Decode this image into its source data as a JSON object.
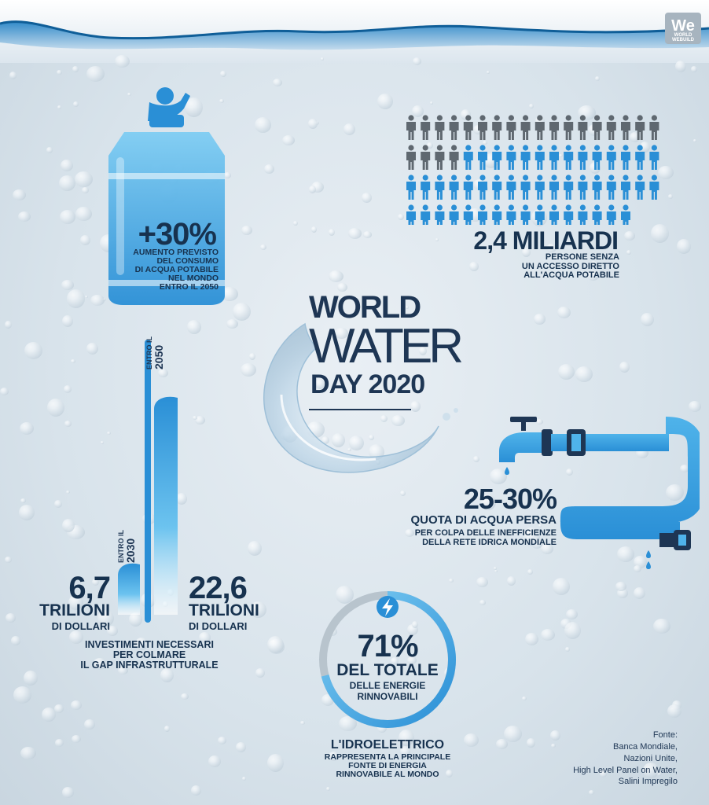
{
  "logo": {
    "text": "We",
    "subtext": "WORLD WEBUILD"
  },
  "title": {
    "line1": "WORLD",
    "line2": "WATER",
    "line3": "DAY 2020"
  },
  "consumption": {
    "value": "+30%",
    "caption": [
      "AUMENTO PREVISTO",
      "DEL CONSUMO",
      "DI ACQUA POTABILE",
      "NEL MONDO",
      "ENTRO IL 2050"
    ]
  },
  "people": {
    "value": "2,4 MILIARDI",
    "caption": [
      "PERSONE SENZA",
      "UN ACCESSO DIRETTO",
      "ALL'ACQUA POTABILE"
    ],
    "rows": [
      {
        "grey": 18,
        "blue": 0
      },
      {
        "grey": 4,
        "blue": 14
      },
      {
        "grey": 0,
        "blue": 18
      },
      {
        "grey": 0,
        "blue": 16
      }
    ]
  },
  "investment": {
    "left_value": "6,7",
    "left_unit": "TRILIONI",
    "left_sub": "DI DOLLARI",
    "left_bar_label": [
      "ENTRO IL",
      "2030"
    ],
    "right_value": "22,6",
    "right_unit": "TRILIONI",
    "right_sub": "DI DOLLARI",
    "right_bar_label": [
      "ENTRO IL",
      "2050"
    ],
    "caption": [
      "INVESTIMENTI NECESSARI",
      "PER COLMARE",
      "IL GAP INFRASTRUTTURALE"
    ]
  },
  "loss": {
    "value": "25-30%",
    "headline": "QUOTA DI ACQUA PERSA",
    "caption": [
      "PER COLPA DELLE INEFFICIENZE",
      "DELLA RETE IDRICA MONDIALE"
    ]
  },
  "hydro": {
    "value": "71%",
    "share": 0.71,
    "line1": "DEL TOTALE",
    "line2": "DELLE ENERGIE",
    "line3": "RINNOVABILI",
    "headline": "L'IDROELETTRICO",
    "caption": [
      "RAPPRESENTA LA PRINCIPALE",
      "FONTE DI ENERGIA",
      "RINNOVABILE AL MONDO"
    ]
  },
  "sources": {
    "label": "Fonte:",
    "items": [
      "Banca Mondiale,",
      "Nazioni Unite,",
      "High Level Panel on Water,",
      "Salini Impregilo"
    ]
  },
  "colors": {
    "navy": "#17324f",
    "blue": "#2a8fd6",
    "lightblue": "#4fb3ea",
    "grey": "#5f6870"
  }
}
